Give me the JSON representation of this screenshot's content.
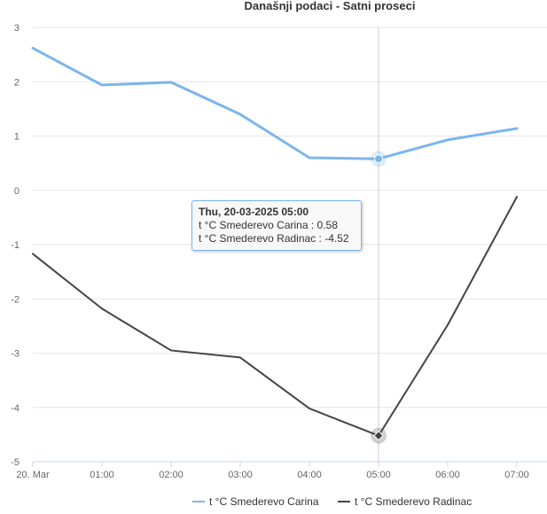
{
  "chart_data": {
    "type": "line",
    "title": "Današnji podaci - Satni proseci",
    "categories": [
      "20. Mar",
      "01:00",
      "02:00",
      "03:00",
      "04:00",
      "05:00",
      "06:00",
      "07:00"
    ],
    "yticks": [
      "3",
      "2",
      "1",
      "0",
      "-1",
      "-2",
      "-3",
      "-4",
      "-5"
    ],
    "ylim": [
      -5,
      3
    ],
    "grid": true,
    "legend_position": "bottom-center",
    "series": [
      {
        "name": "t °C Smederevo Carina",
        "color": "#7cb5ec",
        "values": [
          2.62,
          1.94,
          1.99,
          1.4,
          0.6,
          0.58,
          0.93,
          1.14
        ]
      },
      {
        "name": "t °C Smederevo Radinac",
        "color": "#434348",
        "values": [
          -1.17,
          -2.18,
          -2.95,
          -3.08,
          -4.02,
          -4.52,
          -2.48,
          -0.12
        ]
      }
    ],
    "tooltip": {
      "category_index": 5,
      "header": "Thu, 20-03-2025 05:00",
      "lines": [
        "t °C Smederevo Carina : 0.58",
        "t °C Smederevo Radinac : -4.52"
      ]
    }
  }
}
